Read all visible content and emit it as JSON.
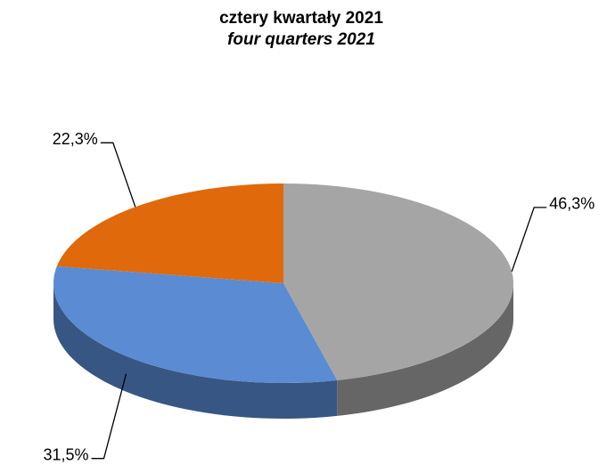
{
  "chart_data": {
    "type": "pie",
    "title": "cztery kwartały 2021",
    "subtitle": "four quarters 2021",
    "values": [
      46.3,
      31.5,
      22.3
    ],
    "value_labels": [
      "46,3%",
      "31,5%",
      "22,3%"
    ],
    "colors": [
      "#a5a5a5",
      "#5b8bd3",
      "#e0690b"
    ]
  }
}
